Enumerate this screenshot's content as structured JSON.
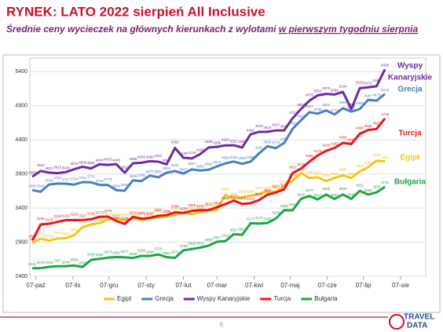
{
  "chart_data": {
    "type": "line",
    "title": "RYNEK: LATO 2022 sierpień All Inclusive",
    "subtitle": "Średnie ceny wycieczek na głównych kierunkach z wylotami ",
    "subtitle_underlined": "w pierwszym tygodniu sierpnia",
    "page_number": "6",
    "logo": [
      "TRAVEL",
      "DATA"
    ],
    "x": [
      -3,
      4,
      11,
      18,
      25,
      32,
      39,
      46,
      53,
      60,
      67,
      74,
      81,
      88,
      95,
      102,
      109,
      116,
      123,
      130,
      137,
      144,
      151,
      158,
      165,
      172,
      179,
      186,
      193,
      200,
      207,
      214,
      221,
      228,
      235,
      242,
      249,
      256,
      263,
      270,
      277,
      284,
      291
    ],
    "xlim": [
      -5,
      325
    ],
    "xticks": [
      {
        "value": 0,
        "label": "07-paź"
      },
      {
        "value": 31,
        "label": "07-lis"
      },
      {
        "value": 61,
        "label": "07-gru"
      },
      {
        "value": 92,
        "label": "07-sty"
      },
      {
        "value": 123,
        "label": "07-lut"
      },
      {
        "value": 151,
        "label": "07-mar"
      },
      {
        "value": 182,
        "label": "07-kwi"
      },
      {
        "value": 212,
        "label": "07-maj"
      },
      {
        "value": 243,
        "label": "07-cze"
      },
      {
        "value": 273,
        "label": "07-lip"
      },
      {
        "value": 304,
        "label": "07-sie"
      }
    ],
    "ylim": [
      2400,
      5600
    ],
    "yticks": [
      2400,
      2900,
      3400,
      3900,
      4400,
      4900,
      5400
    ],
    "grid": true,
    "legend": "bottom",
    "series": [
      {
        "name": "Egipt",
        "color": "#f5c518",
        "values": [
          2888,
          2951,
          2926,
          2952,
          2960,
          3003,
          3120,
          3160,
          3180,
          3234,
          3250,
          3220,
          3249,
          3225,
          3250,
          3265,
          3280,
          3300,
          3330,
          3310,
          3340,
          3360,
          3380,
          3592,
          3540,
          3560,
          3580,
          3610,
          3640,
          3637,
          3723,
          3802,
          3911,
          3840,
          3851,
          3795,
          3843,
          3880,
          3842,
          3935,
          4000,
          4096,
          4085
        ]
      },
      {
        "name": "Grecja",
        "color": "#4a7ec2",
        "values": [
          3665,
          3640,
          3746,
          3760,
          3757,
          3744,
          3781,
          3778,
          3740,
          3740,
          3664,
          3655,
          3808,
          3796,
          3877,
          3851,
          3920,
          3942,
          3907,
          3967,
          3952,
          3962,
          4012,
          4056,
          4082,
          4050,
          4080,
          4201,
          4306,
          4278,
          4356,
          4562,
          4687,
          4807,
          4785,
          4832,
          4774,
          4864,
          4815,
          4852,
          4987,
          4975,
          5074
        ]
      },
      {
        "name": "Wyspy Kanaryjskie",
        "color": "#6a2ca0",
        "values": [
          3859,
          3945,
          3921,
          3913,
          3928,
          3970,
          4006,
          3982,
          4043,
          4033,
          4045,
          3918,
          4058,
          4065,
          4088,
          4081,
          4043,
          4282,
          4138,
          4128,
          4192,
          4289,
          4298,
          4320,
          4321,
          4288,
          4481,
          4518,
          4519,
          4537,
          4540,
          4717,
          4853,
          4975,
          5053,
          5075,
          5066,
          5104,
          4852,
          5158,
          5172,
          5187,
          5435
        ]
      },
      {
        "name": "Turcja",
        "color": "#e8141c",
        "values": [
          2925,
          3160,
          3170,
          3198,
          3223,
          3223,
          3227,
          3235,
          3273,
          3276,
          3212,
          3168,
          3272,
          3245,
          3257,
          3287,
          3296,
          3338,
          3330,
          3359,
          3370,
          3372,
          3413,
          3459,
          3510,
          3460,
          3472,
          3517,
          3597,
          3627,
          3675,
          3913,
          3979,
          4080,
          4172,
          4240,
          4282,
          4356,
          4340,
          4490,
          4545,
          4561,
          4715
        ]
      },
      {
        "name": "Bułgaria",
        "color": "#1ea34a",
        "values": [
          2519,
          2519,
          2538,
          2547,
          2548,
          2558,
          2537,
          2640,
          2656,
          2673,
          2682,
          2677,
          2668,
          2698,
          2698,
          2720,
          2681,
          2671,
          2780,
          2800,
          2820,
          2850,
          2907,
          2914,
          3017,
          3007,
          3177,
          3172,
          3182,
          3246,
          3369,
          3367,
          3535,
          3577,
          3527,
          3600,
          3533,
          3600,
          3535,
          3652,
          3598,
          3630,
          3712
        ]
      }
    ],
    "annotations": [
      {
        "text": "Wyspy",
        "color": "#6a2ca0"
      },
      {
        "text": "Kanaryjskie",
        "color": "#6a2ca0"
      },
      {
        "text": "Grecja",
        "color": "#4a7ec2"
      },
      {
        "text": "Turcja",
        "color": "#e8141c"
      },
      {
        "text": "Egipt",
        "color": "#f5c518"
      },
      {
        "text": "Bułgaria",
        "color": "#1ea34a"
      }
    ]
  }
}
